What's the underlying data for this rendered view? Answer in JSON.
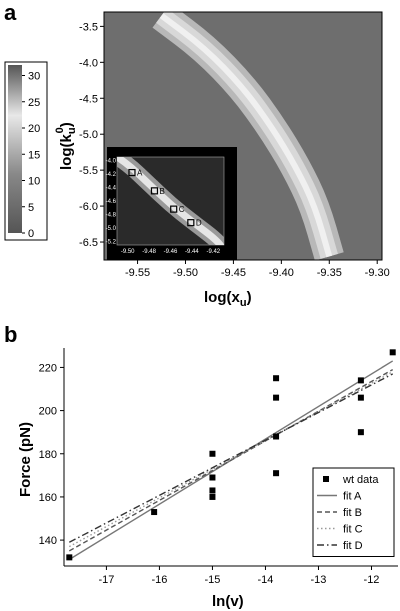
{
  "panels": {
    "a": "a",
    "b": "b"
  },
  "colors": {
    "background_map": "#6e6e6e",
    "ridge_high": "#f2f2f2",
    "fit_A": "#777777",
    "fit_B": "#555555",
    "fit_C": "#999999",
    "fit_D": "#333333",
    "marker": "#000000"
  },
  "chart_data": [
    {
      "type": "heatmap",
      "panel": "a",
      "xlabel_main": "log(x",
      "xlabel_sub": "u",
      "xlabel_close": ")",
      "ylabel_main": "log(k",
      "ylabel_sub": "u",
      "ylabel_sup": "0",
      "ylabel_close": ")",
      "xlim": [
        -9.585,
        -9.295
      ],
      "ylim": [
        -6.75,
        -3.3
      ],
      "xticks": [
        -9.55,
        -9.5,
        -9.45,
        -9.4,
        -9.35,
        -9.3
      ],
      "xtick_labels": [
        "-9.55",
        "-9.50",
        "-9.45",
        "-9.40",
        "-9.35",
        "-9.30"
      ],
      "yticks": [
        -3.5,
        -4.0,
        -4.5,
        -5.0,
        -5.5,
        -6.0,
        -6.5
      ],
      "ytick_labels": [
        "-3.5",
        "-4.0",
        "-4.5",
        "-5.0",
        "-5.5",
        "-6.0",
        "-6.5"
      ],
      "colorbar": {
        "range": [
          0,
          32
        ],
        "ticks": [
          0,
          5,
          10,
          15,
          20,
          25,
          30
        ],
        "tick_labels": [
          "0",
          "5",
          "10",
          "15",
          "20",
          "25",
          "30"
        ]
      },
      "ridge": {
        "description_points": [
          {
            "x": -9.525,
            "y": -3.35
          },
          {
            "x": -9.48,
            "y": -3.8
          },
          {
            "x": -9.44,
            "y": -4.35
          },
          {
            "x": -9.41,
            "y": -4.9
          },
          {
            "x": -9.385,
            "y": -5.45
          },
          {
            "x": -9.365,
            "y": -6.0
          },
          {
            "x": -9.35,
            "y": -6.7
          }
        ],
        "peak_value": 30
      },
      "inset": {
        "xlim": [
          -9.51,
          -9.41
        ],
        "ylim": [
          -5.25,
          -3.95
        ],
        "xticks": [
          -9.5,
          -9.48,
          -9.46,
          -9.44,
          -9.42
        ],
        "xtick_labels": [
          "-9.50",
          "-9.48",
          "-9.46",
          "-9.44",
          "-9.42"
        ],
        "yticks": [
          -4.0,
          -4.2,
          -4.4,
          -4.6,
          -4.8,
          -5.0,
          -5.2
        ],
        "ytick_labels": [
          "-4.0",
          "-4.2",
          "-4.4",
          "-4.6",
          "-4.8",
          "-5.0",
          "-5.2"
        ],
        "markers": [
          {
            "label": "A",
            "x": -9.496,
            "y": -4.18
          },
          {
            "label": "B",
            "x": -9.475,
            "y": -4.45
          },
          {
            "label": "C",
            "x": -9.457,
            "y": -4.72
          },
          {
            "label": "D",
            "x": -9.441,
            "y": -4.92
          }
        ]
      }
    },
    {
      "type": "scatter",
      "panel": "b",
      "xlabel": "ln(v)",
      "ylabel": "Force (pN)",
      "xlim": [
        -17.8,
        -11.5
      ],
      "ylim": [
        128,
        229
      ],
      "xticks": [
        -17,
        -16,
        -15,
        -14,
        -13,
        -12
      ],
      "xtick_labels": [
        "-17",
        "-16",
        "-15",
        "-14",
        "-13",
        "-12"
      ],
      "yticks": [
        140,
        160,
        180,
        200,
        220
      ],
      "ytick_labels": [
        "140",
        "160",
        "180",
        "200",
        "220"
      ],
      "legend_position": "lower-right",
      "series": [
        {
          "name": "wt data",
          "kind": "points",
          "x": [
            -17.7,
            -16.1,
            -15.0,
            -15.0,
            -15.0,
            -15.0,
            -13.8,
            -13.8,
            -13.8,
            -13.8,
            -12.2,
            -12.2,
            -12.2,
            -11.6
          ],
          "y": [
            132,
            153,
            180,
            163,
            160,
            169,
            215,
            206,
            188,
            171,
            214,
            206,
            190,
            227
          ]
        },
        {
          "name": "fit A",
          "kind": "line",
          "dash": "solid",
          "x": [
            -17.7,
            -11.6
          ],
          "y": [
            131,
            223
          ]
        },
        {
          "name": "fit B",
          "kind": "line",
          "dash": "dashed",
          "x": [
            -17.7,
            -11.6
          ],
          "y": [
            135,
            219
          ]
        },
        {
          "name": "fit C",
          "kind": "line",
          "dash": "dotted",
          "x": [
            -17.7,
            -11.6
          ],
          "y": [
            137,
            218
          ]
        },
        {
          "name": "fit D",
          "kind": "line",
          "dash": "dashdot",
          "x": [
            -17.7,
            -11.6
          ],
          "y": [
            139,
            217
          ]
        }
      ]
    }
  ]
}
